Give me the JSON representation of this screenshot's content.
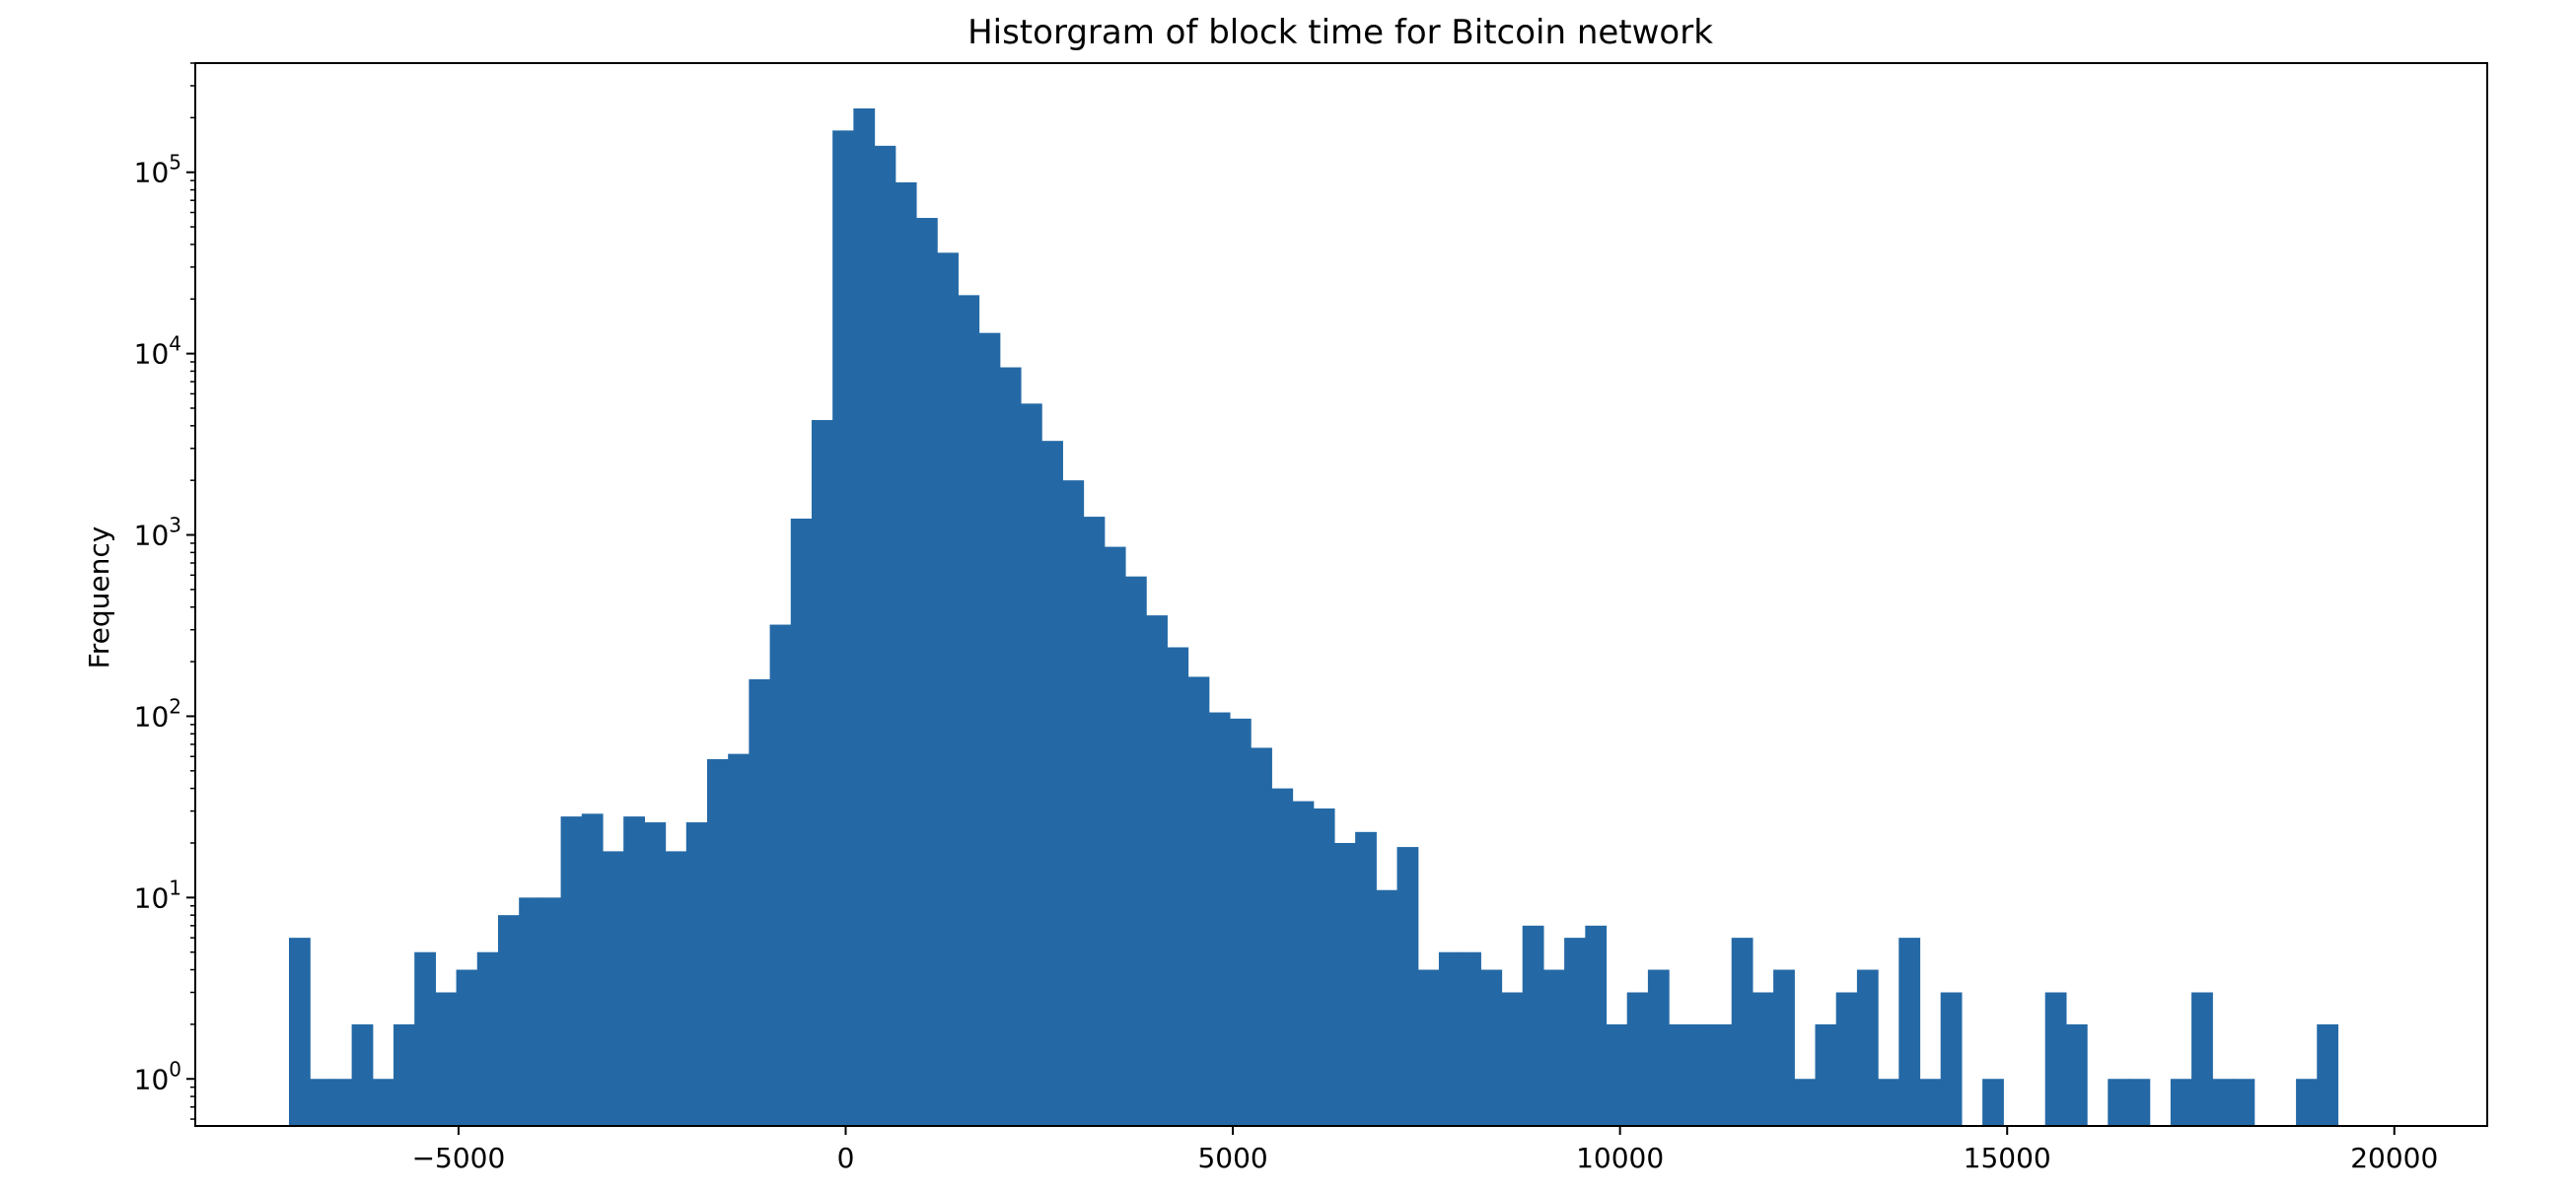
{
  "chart_data": {
    "type": "bar",
    "title": "Historgram of block time for Bitcoin network",
    "xlabel": "",
    "ylabel": "Frequency",
    "yscale": "log",
    "grid": false,
    "legend": "none",
    "color": "#2469a6",
    "xlim": [
      -8400,
      21200
    ],
    "ylim": [
      0.55,
      400000
    ],
    "xticks": [
      -5000,
      0,
      5000,
      10000,
      15000,
      20000
    ],
    "xtick_labels": [
      "−5000",
      "0",
      "5000",
      "10000",
      "15000",
      "20000"
    ],
    "yticks": [
      1,
      10,
      100,
      1000,
      10000,
      100000
    ],
    "ytick_labels": [
      {
        "base": "10",
        "exp": "0"
      },
      {
        "base": "10",
        "exp": "1"
      },
      {
        "base": "10",
        "exp": "2"
      },
      {
        "base": "10",
        "exp": "3"
      },
      {
        "base": "10",
        "exp": "4"
      },
      {
        "base": "10",
        "exp": "5"
      }
    ],
    "bin_start": -7190,
    "bin_width": 270,
    "values": [
      6,
      1,
      1,
      2,
      1,
      2,
      5,
      3,
      4,
      5,
      8,
      10,
      10,
      28,
      29,
      18,
      28,
      26,
      18,
      26,
      58,
      62,
      160,
      320,
      1230,
      4300,
      170000,
      225000,
      140000,
      88000,
      56000,
      36000,
      21000,
      13000,
      8400,
      5300,
      3300,
      2000,
      1260,
      860,
      590,
      360,
      240,
      165,
      105,
      97,
      67,
      40,
      34,
      31,
      20,
      23,
      11,
      19,
      4,
      5,
      5,
      4,
      3,
      7,
      4,
      6,
      7,
      2,
      3,
      4,
      2,
      2,
      2,
      6,
      3,
      4,
      1,
      2,
      3,
      4,
      1,
      6,
      1,
      3,
      0,
      1,
      0,
      0,
      3,
      2,
      0,
      1,
      1,
      0,
      1,
      3,
      1,
      1,
      0,
      0,
      1,
      2
    ]
  }
}
